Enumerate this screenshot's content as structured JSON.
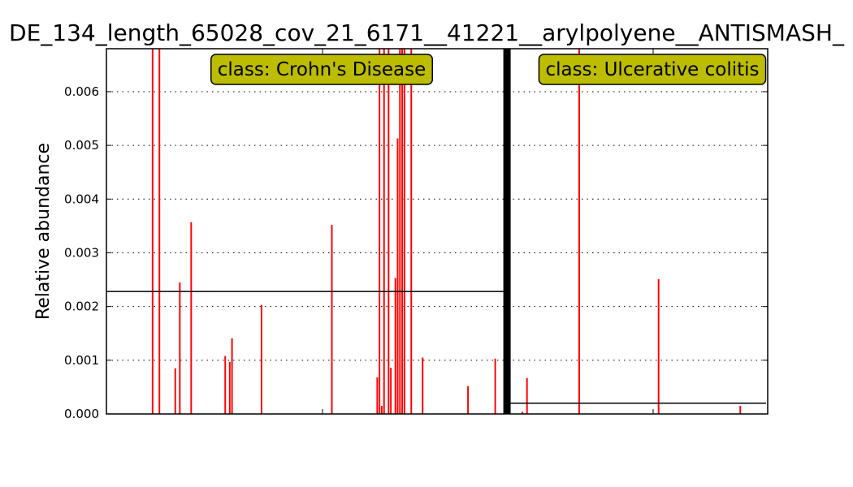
{
  "chart_data": {
    "type": "bar",
    "title": "DE_134_length_65028_cov_21_6171__41221__arylpolyene__ANTISMASH_",
    "xlabel": "",
    "ylabel": "Relative abundance",
    "ylim": [
      0,
      0.0068
    ],
    "yticks": [
      "0.000",
      "0.001",
      "0.002",
      "0.003",
      "0.004",
      "0.005",
      "0.006"
    ],
    "grid": true,
    "bar_color": "#ff0000",
    "class_box_color": "#bcbc00",
    "groups": [
      {
        "label": "class: Crohn's Disease",
        "mean": 0.00228,
        "values": [
          0,
          0,
          0,
          0,
          0,
          0,
          0,
          0,
          0,
          0,
          0,
          0,
          0,
          0,
          0,
          0,
          0,
          0,
          0,
          0,
          0.0068,
          0,
          0,
          0.0068,
          0,
          0,
          0,
          0,
          0,
          0,
          0.00085,
          0,
          0.00245,
          0,
          0,
          0,
          0,
          0.00357,
          0,
          0,
          0,
          0,
          0,
          0,
          0,
          0,
          0,
          0,
          0,
          0,
          0,
          0,
          0.00108,
          0,
          0.00097,
          0.00141,
          0,
          0,
          0,
          0,
          0,
          0,
          0,
          0,
          0,
          0,
          0,
          0,
          0.00203,
          0,
          0,
          0,
          0,
          0,
          0,
          0,
          0,
          0,
          0,
          0,
          0,
          0,
          0,
          0,
          0,
          0,
          0,
          0,
          0,
          0,
          0,
          0,
          0,
          0,
          0,
          0,
          0,
          0,
          0,
          0.00352,
          0,
          0,
          0,
          0,
          0,
          0,
          0,
          0,
          0,
          0,
          0,
          0,
          0,
          0,
          0,
          0,
          0,
          0,
          0,
          0.00068,
          0.0068,
          0.00015,
          0.0068,
          0,
          0.0068,
          0.00086,
          0,
          0.00253,
          0.00513,
          0.0068,
          0.0068,
          0.0068,
          0,
          0,
          0.0068,
          0,
          0,
          0,
          0,
          0.00105,
          0,
          0,
          0,
          0,
          0,
          0,
          0,
          0,
          0,
          0,
          0,
          0,
          0,
          0,
          0,
          0,
          0,
          0,
          0,
          0.00052,
          0,
          0,
          0,
          0,
          0,
          0,
          0,
          0,
          0,
          0,
          0,
          0.00103,
          0,
          0,
          0,
          0
        ]
      },
      {
        "label": "class: Ulcerative colitis",
        "mean": 0.0002,
        "values": [
          0,
          0,
          0,
          0,
          0,
          0,
          0,
          4e-05,
          0,
          0.00067,
          0,
          0,
          0,
          0,
          0,
          0,
          0,
          0,
          0,
          0,
          0,
          0,
          0,
          0,
          0,
          0,
          0,
          0,
          0,
          0,
          0,
          0,
          0.0068,
          0,
          0,
          0,
          0,
          0,
          0,
          0,
          0,
          0,
          0,
          0,
          0,
          0,
          0,
          0,
          0,
          0,
          0,
          0,
          0,
          0,
          0,
          0,
          0,
          0,
          0,
          0,
          0,
          0,
          0,
          0,
          0,
          0,
          0,
          0.00251,
          0,
          0,
          0,
          0,
          0,
          0,
          0,
          0,
          0,
          0,
          0,
          0,
          0,
          0,
          0,
          0,
          0,
          0,
          0,
          0,
          0,
          0,
          0,
          0,
          0,
          0,
          0,
          0,
          0,
          0,
          0,
          0,
          0,
          0,
          0,
          0.00015,
          0,
          0,
          0,
          0,
          0,
          0,
          0,
          0,
          0,
          0
        ]
      }
    ]
  }
}
